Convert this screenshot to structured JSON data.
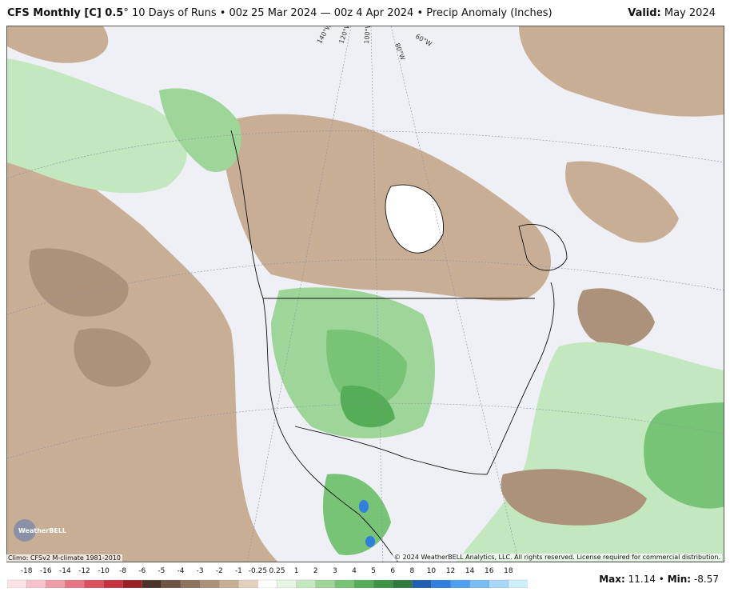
{
  "header": {
    "model": "CFS Monthly [C] 0.5",
    "degree": "°",
    "run_info": "10 Days of Runs • 00z 25 Mar 2024 — 00z 4 Apr 2024 • Precip Anomaly (Inches)",
    "valid_label": "Valid:",
    "valid_value": "May 2024"
  },
  "map": {
    "longitude_labels": [
      "140°W",
      "120°W",
      "100°W",
      "80°W",
      "60°W"
    ],
    "logo": "WeatherBELL",
    "climo_note": "Climo: CFSv2 M-climate 1981-2010",
    "copyright": "© 2024 WeatherBELL Analytics, LLC. All rights reserved. License required for commercial distribution."
  },
  "colorbar": {
    "labels": [
      "-18",
      "-16",
      "-14",
      "-12",
      "-10",
      "-8",
      "-6",
      "-5",
      "-4",
      "-3",
      "-2",
      "-1",
      "-0.25",
      "0.25",
      "1",
      "2",
      "3",
      "4",
      "5",
      "6",
      "8",
      "10",
      "12",
      "14",
      "16",
      "18"
    ],
    "colors": [
      "#fde3e8",
      "#f7c2cb",
      "#f09ca8",
      "#e77483",
      "#db4f5e",
      "#c6323e",
      "#9a2024",
      "#4a3427",
      "#6e5443",
      "#8e735f",
      "#ad927b",
      "#c8ae95",
      "#e3cfbb",
      "#ffffff",
      "#e6f5e4",
      "#c3e7bf",
      "#9ed69a",
      "#78c477",
      "#55ad57",
      "#3d9447",
      "#2e7b3d",
      "#1f5fb0",
      "#2f7ee0",
      "#4f9ff0",
      "#78bdf5",
      "#a8d7fa",
      "#cdeefb"
    ]
  },
  "stats": {
    "max_label": "Max:",
    "max_value": "11.14",
    "separator": "•",
    "min_label": "Min:",
    "min_value": "-8.57"
  }
}
